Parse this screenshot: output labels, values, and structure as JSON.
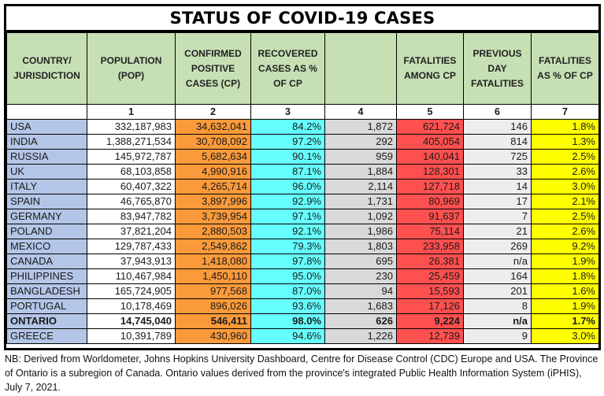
{
  "title": "STATUS OF COVID-19 CASES",
  "headers": [
    "COUNTRY/ JURISDICTION",
    "POPULATION (POP)",
    "CONFIRMED POSITIVE CASES (CP)",
    "RECOVERED CASES AS % OF CP",
    "",
    "FATALITIES AMONG CP",
    "PREVIOUS DAY FATALITIES",
    "FATALITIES AS % OF CP"
  ],
  "column_numbers": [
    "",
    "1",
    "2",
    "3",
    "4",
    "5",
    "6",
    "7"
  ],
  "colors": {
    "header_bg": "#c6e0b4",
    "country_bg": "#b4c6e7",
    "confirmed_bg": "#fb9a3a",
    "recovered_bg": "#66ffff",
    "col4_bg": "#d9d9d9",
    "fatalities_bg": "#ff5050",
    "previous_day_bg": "#ededed",
    "fatality_pct_bg": "#ffff00"
  },
  "rows": [
    {
      "country": "USA",
      "population": "332,187,983",
      "confirmed": "34,632,041",
      "recovered_pct": "84.2%",
      "col4": "1,872",
      "fatalities": "621,724",
      "previous_day": "146",
      "fatality_pct": "1.8%",
      "bold": false
    },
    {
      "country": "INDIA",
      "population": "1,388,271,534",
      "confirmed": "30,708,092",
      "recovered_pct": "97.2%",
      "col4": "292",
      "fatalities": "405,054",
      "previous_day": "814",
      "fatality_pct": "1.3%",
      "bold": false
    },
    {
      "country": "RUSSIA",
      "population": "145,972,787",
      "confirmed": "5,682,634",
      "recovered_pct": "90.1%",
      "col4": "959",
      "fatalities": "140,041",
      "previous_day": "725",
      "fatality_pct": "2.5%",
      "bold": false
    },
    {
      "country": "UK",
      "population": "68,103,858",
      "confirmed": "4,990,916",
      "recovered_pct": "87.1%",
      "col4": "1,884",
      "fatalities": "128,301",
      "previous_day": "33",
      "fatality_pct": "2.6%",
      "bold": false
    },
    {
      "country": "ITALY",
      "population": "60,407,322",
      "confirmed": "4,265,714",
      "recovered_pct": "96.0%",
      "col4": "2,114",
      "fatalities": "127,718",
      "previous_day": "14",
      "fatality_pct": "3.0%",
      "bold": false
    },
    {
      "country": "SPAIN",
      "population": "46,765,870",
      "confirmed": "3,897,996",
      "recovered_pct": "92.9%",
      "col4": "1,731",
      "fatalities": "80,969",
      "previous_day": "17",
      "fatality_pct": "2.1%",
      "bold": false
    },
    {
      "country": "GERMANY",
      "population": "83,947,782",
      "confirmed": "3,739,954",
      "recovered_pct": "97.1%",
      "col4": "1,092",
      "fatalities": "91,637",
      "previous_day": "7",
      "fatality_pct": "2.5%",
      "bold": false
    },
    {
      "country": "POLAND",
      "population": "37,821,204",
      "confirmed": "2,880,503",
      "recovered_pct": "92.1%",
      "col4": "1,986",
      "fatalities": "75,114",
      "previous_day": "21",
      "fatality_pct": "2.6%",
      "bold": false
    },
    {
      "country": "MEXICO",
      "population": "129,787,433",
      "confirmed": "2,549,862",
      "recovered_pct": "79.3%",
      "col4": "1,803",
      "fatalities": "233,958",
      "previous_day": "269",
      "fatality_pct": "9.2%",
      "bold": false
    },
    {
      "country": "CANADA",
      "population": "37,943,913",
      "confirmed": "1,418,080",
      "recovered_pct": "97.8%",
      "col4": "695",
      "fatalities": "26,381",
      "previous_day": "n/a",
      "fatality_pct": "1.9%",
      "bold": false
    },
    {
      "country": "PHILIPPINES",
      "population": "110,467,984",
      "confirmed": "1,450,110",
      "recovered_pct": "95.0%",
      "col4": "230",
      "fatalities": "25,459",
      "previous_day": "164",
      "fatality_pct": "1.8%",
      "bold": false
    },
    {
      "country": "BANGLADESH",
      "population": "165,724,905",
      "confirmed": "977,568",
      "recovered_pct": "87.0%",
      "col4": "94",
      "fatalities": "15,593",
      "previous_day": "201",
      "fatality_pct": "1.6%",
      "bold": false
    },
    {
      "country": "PORTUGAL",
      "population": "10,178,469",
      "confirmed": "896,026",
      "recovered_pct": "93.6%",
      "col4": "1,683",
      "fatalities": "17,126",
      "previous_day": "8",
      "fatality_pct": "1.9%",
      "bold": false
    },
    {
      "country": "ONTARIO",
      "population": "14,745,040",
      "confirmed": "546,411",
      "recovered_pct": "98.0%",
      "col4": "626",
      "fatalities": "9,224",
      "previous_day": "n/a",
      "fatality_pct": "1.7%",
      "bold": true
    },
    {
      "country": "GREECE",
      "population": "10,391,789",
      "confirmed": "430,960",
      "recovered_pct": "94.6%",
      "col4": "1,226",
      "fatalities": "12,739",
      "previous_day": "9",
      "fatality_pct": "3.0%",
      "bold": false
    }
  ],
  "note": "NB: Derived from Worldometer, Johns Hopkins University Dashboard, Centre for Disease Control (CDC) Europe and USA. The Province of Ontario is a subregion of Canada. Ontario values derived from the province's integrated Public Health Information System (iPHIS), July 7, 2021."
}
